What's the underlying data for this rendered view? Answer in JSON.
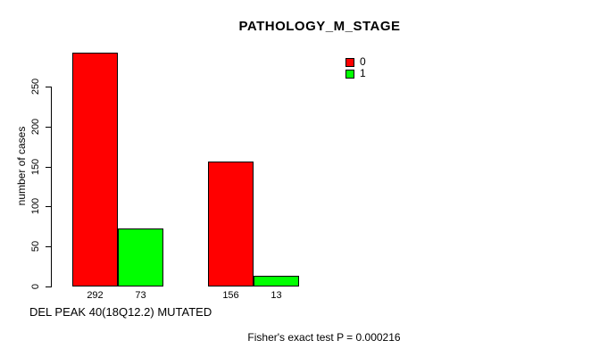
{
  "chart_data": {
    "type": "bar",
    "title": "PATHOLOGY_M_STAGE",
    "ylabel": "number of cases",
    "xlabel": "DEL PEAK 40(18Q12.2) MUTATED",
    "annotation": "Fisher's exact test P = 0.000216",
    "series": [
      {
        "name": "0",
        "color": "#FF0000",
        "values": [
          292,
          156
        ]
      },
      {
        "name": "1",
        "color": "#00FF00",
        "values": [
          73,
          13
        ]
      }
    ],
    "bar_value_labels": [
      [
        "292",
        "156"
      ],
      [
        "73",
        "13"
      ]
    ],
    "yticks": [
      0,
      50,
      100,
      150,
      200,
      250
    ],
    "ylim": [
      0,
      292
    ],
    "grid": false,
    "legend_position": "top-right-inside",
    "bar_outline_color": "#000000",
    "background_color": "#FFFFFF"
  }
}
